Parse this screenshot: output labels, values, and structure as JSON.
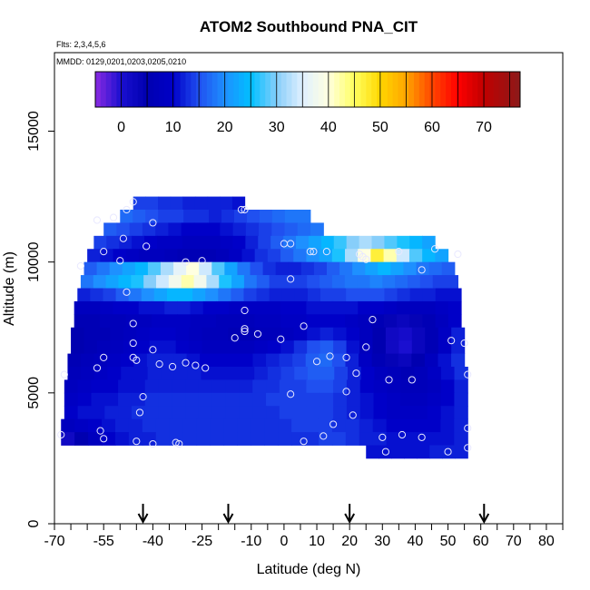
{
  "chart_data": {
    "type": "heatmap",
    "title": "ATOM2 Southbound PNA_CIT",
    "flights_note": "Flts: 2,3,4,5,6",
    "dates_note": "MMDD: 0129,0201,0203,0205,0210",
    "xlabel": "Latitude (deg N)",
    "ylabel": "Altitude (m)",
    "xlim": [
      -70,
      85
    ],
    "ylim": [
      0,
      18000
    ],
    "x_ticks": [
      -70,
      -55,
      -40,
      -25,
      -10,
      0,
      10,
      20,
      30,
      40,
      50,
      60,
      70,
      80
    ],
    "x_tick_labels": [
      "-70",
      "-55",
      "-40",
      "-25",
      "-10",
      "0",
      "10",
      "20",
      "30",
      "40",
      "50",
      "60",
      "70",
      "80"
    ],
    "y_ticks": [
      0,
      5000,
      10000,
      15000
    ],
    "y_tick_labels": [
      "0",
      "5000",
      "10000",
      "15000"
    ],
    "colorbar": {
      "range": [
        -5,
        77
      ],
      "ticks": [
        0,
        10,
        20,
        30,
        40,
        50,
        60,
        70
      ],
      "tick_labels": [
        "0",
        "10",
        "20",
        "30",
        "40",
        "50",
        "60",
        "70"
      ],
      "stops": [
        {
          "v": -5,
          "c": "#8a2be2"
        },
        {
          "v": 0,
          "c": "#1a0fd0"
        },
        {
          "v": 5,
          "c": "#0000b0"
        },
        {
          "v": 10,
          "c": "#0000c8"
        },
        {
          "v": 15,
          "c": "#2050f0"
        },
        {
          "v": 20,
          "c": "#1e90ff"
        },
        {
          "v": 25,
          "c": "#00bfff"
        },
        {
          "v": 30,
          "c": "#87cefa"
        },
        {
          "v": 35,
          "c": "#e0f0ff"
        },
        {
          "v": 40,
          "c": "#ffffe0"
        },
        {
          "v": 45,
          "c": "#ffff60"
        },
        {
          "v": 50,
          "c": "#ffd700"
        },
        {
          "v": 55,
          "c": "#ffa500"
        },
        {
          "v": 60,
          "c": "#ff4500"
        },
        {
          "v": 65,
          "c": "#ff0000"
        },
        {
          "v": 70,
          "c": "#c00000"
        },
        {
          "v": 77,
          "c": "#8b1a1a"
        }
      ]
    },
    "lat_bins": [
      -68,
      -64,
      -60,
      -56,
      -52,
      -48,
      -44,
      -40,
      -36,
      -32,
      -28,
      -24,
      -20,
      -16,
      -12,
      -8,
      -4,
      0,
      4,
      8,
      12,
      16,
      20,
      24,
      28,
      32,
      36,
      40,
      44,
      48,
      52,
      56
    ],
    "alt_bands": [
      {
        "alt": [
          12000,
          12500
        ],
        "lat": [
          -46,
          -12
        ],
        "v": [
          14,
          14,
          13,
          13,
          12,
          12,
          12,
          12,
          11
        ]
      },
      {
        "alt": [
          11500,
          12000
        ],
        "lat": [
          -50,
          8
        ],
        "v": [
          17,
          16,
          15,
          14,
          14,
          13,
          13,
          12,
          13,
          14,
          15,
          16,
          17,
          18,
          18
        ]
      },
      {
        "alt": [
          11000,
          11500
        ],
        "lat": [
          -55,
          12
        ],
        "v": [
          16,
          15,
          14,
          13,
          12,
          11,
          10,
          10,
          10,
          11,
          12,
          13,
          14,
          15,
          16,
          17,
          18
        ]
      },
      {
        "alt": [
          10500,
          11000
        ],
        "lat": [
          -58,
          46
        ],
        "v": [
          14,
          13,
          12,
          11,
          10,
          9,
          9,
          8,
          8,
          8,
          9,
          10,
          12,
          14,
          16,
          18,
          20,
          22,
          24,
          27,
          30,
          32,
          30,
          28,
          26,
          24,
          22
        ]
      },
      {
        "alt": [
          10000,
          10500
        ],
        "lat": [
          -60,
          50
        ],
        "v": [
          12,
          11,
          10,
          9,
          8,
          8,
          7,
          6,
          6,
          6,
          7,
          9,
          11,
          13,
          14,
          16,
          18,
          20,
          22,
          26,
          32,
          40,
          47,
          42,
          34,
          28,
          24,
          22
        ]
      },
      {
        "alt": [
          9500,
          10000
        ],
        "lat": [
          -61,
          52
        ],
        "v": [
          16,
          18,
          20,
          22,
          24,
          28,
          32,
          36,
          40,
          34,
          28,
          22,
          18,
          15,
          13,
          12,
          12,
          13,
          14,
          16,
          18,
          20,
          22,
          24,
          22,
          20,
          18,
          17,
          16
        ]
      },
      {
        "alt": [
          9000,
          9500
        ],
        "lat": [
          -62,
          53
        ],
        "v": [
          18,
          20,
          22,
          24,
          26,
          30,
          34,
          38,
          42,
          38,
          32,
          26,
          22,
          18,
          16,
          14,
          14,
          14,
          15,
          16,
          17,
          18,
          18,
          19,
          18,
          17,
          16,
          15,
          14,
          14
        ]
      },
      {
        "alt": [
          8500,
          9000
        ],
        "lat": [
          -63,
          54
        ],
        "v": [
          12,
          13,
          14,
          16,
          18,
          20,
          22,
          24,
          24,
          22,
          20,
          18,
          16,
          14,
          13,
          12,
          12,
          12,
          13,
          14,
          14,
          15,
          15,
          15,
          14,
          13,
          12,
          12,
          11,
          11
        ]
      },
      {
        "alt": [
          8000,
          8500
        ],
        "lat": [
          -64,
          54
        ],
        "v": [
          8,
          8,
          9,
          10,
          10,
          11,
          11,
          12,
          12,
          11,
          10,
          10,
          9,
          9,
          9,
          9,
          10,
          10,
          11,
          11,
          11,
          11,
          10,
          10,
          9,
          8,
          8,
          8,
          9,
          10
        ]
      },
      {
        "alt": [
          7500,
          8000
        ],
        "lat": [
          -64,
          54
        ],
        "v": [
          6,
          6,
          7,
          7,
          8,
          8,
          9,
          9,
          9,
          8,
          8,
          7,
          7,
          7,
          8,
          8,
          9,
          9,
          10,
          10,
          10,
          9,
          8,
          6,
          4,
          3,
          4,
          6,
          8,
          10
        ]
      },
      {
        "alt": [
          7000,
          7500
        ],
        "lat": [
          -65,
          55
        ],
        "v": [
          5,
          6,
          6,
          7,
          8,
          9,
          10,
          10,
          9,
          8,
          7,
          7,
          6,
          6,
          7,
          7,
          8,
          9,
          11,
          12,
          11,
          10,
          8,
          5,
          2,
          1,
          3,
          6,
          9,
          12
        ]
      },
      {
        "alt": [
          6500,
          7000
        ],
        "lat": [
          -65,
          55
        ],
        "v": [
          5,
          6,
          7,
          8,
          9,
          10,
          11,
          11,
          10,
          9,
          8,
          8,
          8,
          8,
          9,
          10,
          11,
          13,
          15,
          16,
          14,
          11,
          8,
          5,
          2,
          0,
          3,
          6,
          9,
          12
        ]
      },
      {
        "alt": [
          6000,
          6500
        ],
        "lat": [
          -66,
          55
        ],
        "v": [
          6,
          7,
          8,
          9,
          10,
          11,
          12,
          12,
          12,
          11,
          10,
          10,
          10,
          10,
          11,
          12,
          13,
          14,
          16,
          17,
          15,
          12,
          9,
          6,
          4,
          3,
          5,
          8,
          11,
          13
        ]
      },
      {
        "alt": [
          5500,
          6000
        ],
        "lat": [
          -66,
          56
        ],
        "v": [
          7,
          8,
          9,
          10,
          11,
          11,
          12,
          12,
          12,
          12,
          11,
          11,
          11,
          11,
          12,
          13,
          14,
          15,
          16,
          16,
          14,
          12,
          10,
          8,
          7,
          6,
          7,
          9,
          11,
          13
        ]
      },
      {
        "alt": [
          5000,
          5500
        ],
        "lat": [
          -67,
          56
        ],
        "v": [
          8,
          9,
          10,
          10,
          11,
          11,
          12,
          12,
          12,
          12,
          12,
          12,
          12,
          12,
          13,
          13,
          14,
          14,
          15,
          15,
          14,
          12,
          10,
          9,
          8,
          7,
          7,
          8,
          10,
          12
        ]
      },
      {
        "alt": [
          4500,
          5000
        ],
        "lat": [
          -67,
          56
        ],
        "v": [
          9,
          10,
          11,
          11,
          12,
          12,
          13,
          13,
          13,
          13,
          13,
          13,
          13,
          13,
          13,
          14,
          14,
          14,
          14,
          14,
          13,
          12,
          11,
          10,
          9,
          8,
          8,
          9,
          10,
          12
        ]
      },
      {
        "alt": [
          4000,
          4500
        ],
        "lat": [
          -67,
          56
        ],
        "v": [
          10,
          11,
          11,
          12,
          12,
          13,
          13,
          13,
          13,
          13,
          13,
          13,
          13,
          13,
          13,
          13,
          14,
          14,
          14,
          14,
          13,
          12,
          11,
          10,
          9,
          9,
          9,
          10,
          11,
          12
        ]
      },
      {
        "alt": [
          3500,
          4000
        ],
        "lat": [
          -68,
          56
        ],
        "v": [
          8,
          9,
          10,
          11,
          12,
          12,
          13,
          13,
          13,
          13,
          13,
          13,
          13,
          13,
          13,
          13,
          13,
          14,
          14,
          14,
          13,
          13,
          12,
          11,
          10,
          10,
          10,
          10,
          11,
          12
        ]
      },
      {
        "alt": [
          3000,
          3500
        ],
        "lat": [
          -68,
          56
        ],
        "v": [
          2,
          5,
          8,
          10,
          11,
          12,
          12,
          13,
          13,
          13,
          13,
          13,
          13,
          13,
          13,
          13,
          13,
          13,
          13,
          14,
          14,
          13,
          12,
          12,
          11,
          11,
          11,
          11,
          11,
          12
        ]
      },
      {
        "alt": [
          2500,
          3000
        ],
        "lat": [
          25,
          56
        ],
        "v": [
          11,
          11,
          11,
          11,
          11,
          12,
          12,
          12
        ]
      }
    ],
    "observations": [
      [
        -46,
        12300
      ],
      [
        -48,
        12000
      ],
      [
        -52,
        11700
      ],
      [
        -57,
        11600
      ],
      [
        -40,
        11500
      ],
      [
        -13,
        12000
      ],
      [
        -12,
        12000
      ],
      [
        -49,
        10900
      ],
      [
        -55,
        10400
      ],
      [
        -42,
        10600
      ],
      [
        -30,
        10000
      ],
      [
        -25,
        10050
      ],
      [
        -62,
        9850
      ],
      [
        -50,
        10050
      ],
      [
        0,
        10700
      ],
      [
        2,
        10700
      ],
      [
        8,
        10400
      ],
      [
        9,
        10400
      ],
      [
        13,
        10400
      ],
      [
        23,
        10300
      ],
      [
        24,
        10200
      ],
      [
        25,
        10100
      ],
      [
        35,
        10400
      ],
      [
        46,
        10500
      ],
      [
        53,
        10300
      ],
      [
        42,
        9700
      ],
      [
        -48,
        8850
      ],
      [
        2,
        9350
      ],
      [
        -12,
        8150
      ],
      [
        -12,
        7450
      ],
      [
        -12,
        7350
      ],
      [
        -8,
        7250
      ],
      [
        -15,
        7100
      ],
      [
        -1,
        7050
      ],
      [
        6,
        7550
      ],
      [
        27,
        7800
      ],
      [
        -46,
        7650
      ],
      [
        -46,
        6900
      ],
      [
        -40,
        6650
      ],
      [
        -55,
        6350
      ],
      [
        -46,
        6350
      ],
      [
        -45,
        6250
      ],
      [
        -38,
        6100
      ],
      [
        -34,
        6000
      ],
      [
        -30,
        6150
      ],
      [
        -27,
        6050
      ],
      [
        -24,
        5950
      ],
      [
        -57,
        5950
      ],
      [
        -67,
        5700
      ],
      [
        14,
        6400
      ],
      [
        19,
        6350
      ],
      [
        10,
        6200
      ],
      [
        22,
        5750
      ],
      [
        25,
        6750
      ],
      [
        32,
        5500
      ],
      [
        39,
        5500
      ],
      [
        51,
        7000
      ],
      [
        55,
        6900
      ],
      [
        56,
        5700
      ],
      [
        -43,
        4850
      ],
      [
        -44,
        4250
      ],
      [
        2,
        4950
      ],
      [
        19,
        5050
      ],
      [
        21,
        4150
      ],
      [
        15,
        3800
      ],
      [
        -56,
        3550
      ],
      [
        -55,
        3250
      ],
      [
        -68,
        3400
      ],
      [
        -45,
        3150
      ],
      [
        -40,
        3050
      ],
      [
        -33,
        3100
      ],
      [
        -32,
        3050
      ],
      [
        6,
        3150
      ],
      [
        12,
        3350
      ],
      [
        30,
        3300
      ],
      [
        36,
        3400
      ],
      [
        42,
        3300
      ],
      [
        31,
        2750
      ],
      [
        50,
        2750
      ],
      [
        56,
        3650
      ],
      [
        56,
        2900
      ]
    ],
    "flight_arrows_lat": [
      -43,
      -17,
      20,
      61
    ]
  }
}
